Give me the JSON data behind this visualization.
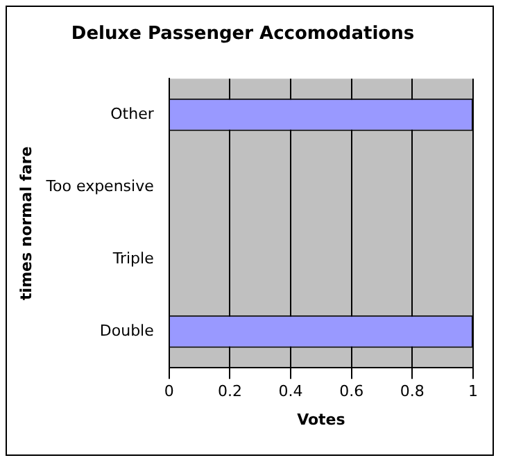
{
  "chart_data": {
    "type": "bar",
    "orientation": "horizontal",
    "title": "Deluxe Passenger Accomodations",
    "xlabel": "Votes",
    "ylabel": "times normal fare",
    "categories": [
      "Other",
      "Too expensive",
      "Triple",
      "Double"
    ],
    "values": [
      1,
      0,
      0,
      1
    ],
    "color": "#9999ff",
    "xlim": [
      0,
      1
    ],
    "xticks": [
      0,
      0.2,
      0.4,
      0.6,
      0.8,
      1
    ],
    "grid": "x",
    "legend": false
  }
}
